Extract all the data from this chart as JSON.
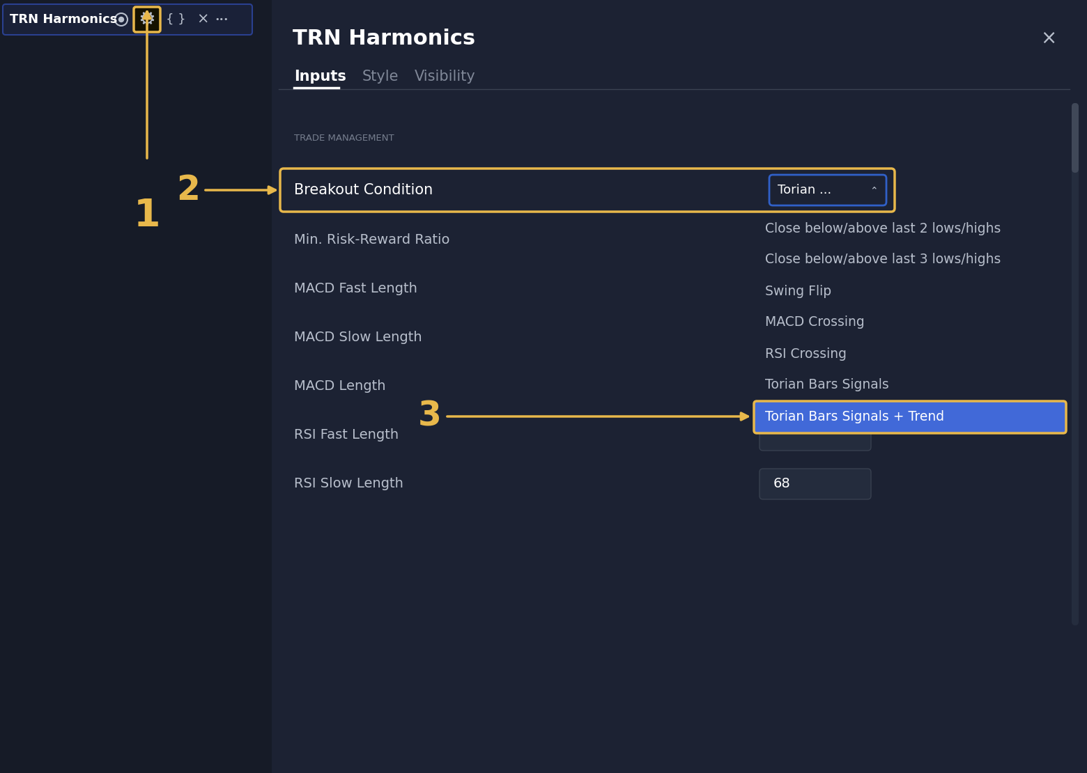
{
  "bg_dark": "#161b27",
  "bg_dialog": "#1c2233",
  "toolbar_text": "TRN Harmonics",
  "dialog_title": "TRN Harmonics",
  "tab_inputs": "Inputs",
  "tab_style": "Style",
  "tab_visibility": "Visibility",
  "section_label": "TRADE MANAGEMENT",
  "breakout_label": "Breakout Condition",
  "breakout_value": "Torian ...",
  "dropdown_items": [
    "Close below/above last 2 lows/highs",
    "Close below/above last 3 lows/highs",
    "Swing Flip",
    "MACD Crossing",
    "RSI Crossing",
    "Torian Bars Signals",
    "Torian Bars Signals + Trend"
  ],
  "left_labels": [
    "Min. Risk-Reward Ratio",
    "MACD Fast Length",
    "MACD Slow Length",
    "MACD Length",
    "RSI Fast Length",
    "RSI Slow Length"
  ],
  "rsi_slow_value": "68",
  "annotation_1": "1",
  "annotation_2": "2",
  "annotation_3": "3",
  "yellow": "#e8b84b",
  "blue_border": "#3060c8",
  "blue_selected": "#4169d8",
  "white": "#ffffff",
  "light_gray": "#b8bfcc",
  "mid_gray": "#505868",
  "text_gray": "#808898",
  "toolbar_border": "#2a4090",
  "gear_bg": "#151200",
  "input_bg": "#242c3d",
  "input_border": "#38404f",
  "scrollbar_track": "#252d3e",
  "scrollbar_thumb": "#404858"
}
